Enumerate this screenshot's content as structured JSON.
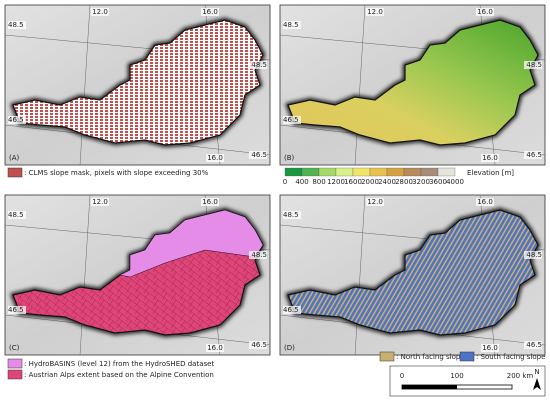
{
  "panels": [
    {
      "label": "(A)",
      "graticule": [
        "12.0",
        "16.0",
        "48.5",
        "46.5",
        "48.5",
        "46.5",
        "16.0"
      ]
    },
    {
      "label": "(B)",
      "graticule": [
        "12.0",
        "16.0",
        "48.5",
        "46.5",
        "48.5",
        "46.5",
        "16.0"
      ]
    },
    {
      "label": "(C)",
      "graticule": [
        "12.0",
        "16.0",
        "48.5",
        "46.5",
        "48.5",
        "46.5",
        "16.0"
      ]
    },
    {
      "label": "(D)",
      "graticule": [
        "12.0",
        "16.0",
        "48.5",
        "46.5",
        "48.5",
        "46.5",
        "16.0"
      ]
    }
  ],
  "legend_a": ": CLMS slope mask, pixels with slope exceeding 30%",
  "elevation": {
    "ticks": [
      "0",
      "400",
      "800",
      "1200",
      "1600",
      "2000",
      "2400",
      "2800",
      "3200",
      "3600",
      "4000"
    ],
    "title": "Elevation [m]"
  },
  "legend_c": [
    ": HydroBASINS (level 12) from the HydroSHED dataset",
    ": Austrian Alps extent based on the Alpine Convention"
  ],
  "legend_d": [
    ": North facing slope",
    ": South facing slope"
  ],
  "scale_bar": [
    "0",
    "100",
    "200 km"
  ],
  "north": "N"
}
